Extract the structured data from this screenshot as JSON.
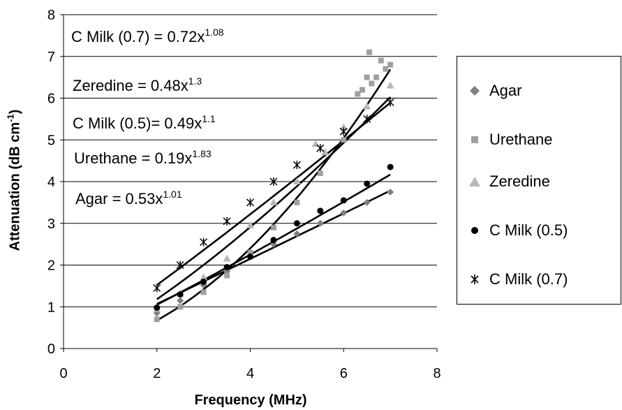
{
  "chart_data": {
    "type": "scatter",
    "xlabel": "Frequency (MHz)",
    "ylabel_main": "Attenuation (dB cm",
    "ylabel_sup": "-1",
    "ylabel_tail": ")",
    "xlim": [
      0,
      8
    ],
    "ylim": [
      0,
      8
    ],
    "xticks": [
      "0",
      "2",
      "4",
      "6",
      "8"
    ],
    "yticks": [
      "0",
      "1",
      "2",
      "3",
      "4",
      "5",
      "6",
      "7",
      "8"
    ],
    "grid": "horizontal",
    "legend_position": "right",
    "series": [
      {
        "name": "Agar",
        "marker": "diamond",
        "color": "#808080",
        "x": [
          2.0,
          2.5,
          3.0,
          3.5,
          4.0,
          4.5,
          5.0,
          5.5,
          6.0,
          6.5,
          7.0
        ],
        "y": [
          0.85,
          1.15,
          1.52,
          1.85,
          2.2,
          2.5,
          2.75,
          3.0,
          3.25,
          3.5,
          3.75
        ],
        "fit": {
          "a": 0.53,
          "b": 1.01
        }
      },
      {
        "name": "Urethane",
        "marker": "square",
        "color": "#a0a0a0",
        "x": [
          2.0,
          2.5,
          3.0,
          3.5,
          4.0,
          4.5,
          5.0,
          5.5,
          6.0,
          6.3,
          6.4,
          6.5,
          6.55,
          6.6,
          6.7,
          6.8,
          6.9,
          7.0
        ],
        "y": [
          0.7,
          1.0,
          1.35,
          1.75,
          2.3,
          2.9,
          3.5,
          4.2,
          5.0,
          6.1,
          6.2,
          6.5,
          7.1,
          6.35,
          6.5,
          6.9,
          6.7,
          6.8
        ],
        "fit": {
          "a": 0.19,
          "b": 1.83
        }
      },
      {
        "name": "Zeredine",
        "marker": "triangle",
        "color": "#b8b8b8",
        "x": [
          2.0,
          2.5,
          3.0,
          3.5,
          4.0,
          4.5,
          5.0,
          5.4,
          5.6,
          6.0,
          6.5,
          7.0
        ],
        "y": [
          0.95,
          1.3,
          1.7,
          2.15,
          2.95,
          3.5,
          4.0,
          4.9,
          4.7,
          5.3,
          5.8,
          6.3
        ],
        "fit": {
          "a": 0.48,
          "b": 1.3
        }
      },
      {
        "name": "C Milk (0.5)",
        "marker": "circle",
        "color": "#000000",
        "x": [
          2.0,
          2.5,
          3.0,
          3.5,
          4.0,
          4.5,
          5.0,
          5.5,
          6.0,
          6.5,
          7.0
        ],
        "y": [
          0.98,
          1.3,
          1.6,
          1.95,
          2.2,
          2.6,
          3.0,
          3.3,
          3.55,
          3.95,
          4.35
        ],
        "fit": {
          "a": 0.49,
          "b": 1.1
        }
      },
      {
        "name": "C Milk (0.7)",
        "marker": "star",
        "color": "#000000",
        "x": [
          2.0,
          2.5,
          3.0,
          3.5,
          4.0,
          4.5,
          5.0,
          5.5,
          6.0,
          6.5,
          7.0
        ],
        "y": [
          1.45,
          2.0,
          2.55,
          3.05,
          3.5,
          4.0,
          4.4,
          4.8,
          5.2,
          5.5,
          5.9
        ],
        "fit": {
          "a": 0.72,
          "b": 1.08
        }
      }
    ],
    "annotations": [
      {
        "prefix": "C Milk (0.7) = 0.72x",
        "exp": "1.08"
      },
      {
        "prefix": "Zeredine = 0.48x",
        "exp": "1.3"
      },
      {
        "prefix": "C Milk (0.5)= 0.49x",
        "exp": "1.1"
      },
      {
        "prefix": "Urethane = 0.19x",
        "exp": "1.83"
      },
      {
        "prefix": "Agar = 0.53x",
        "exp": "1.01"
      }
    ]
  }
}
